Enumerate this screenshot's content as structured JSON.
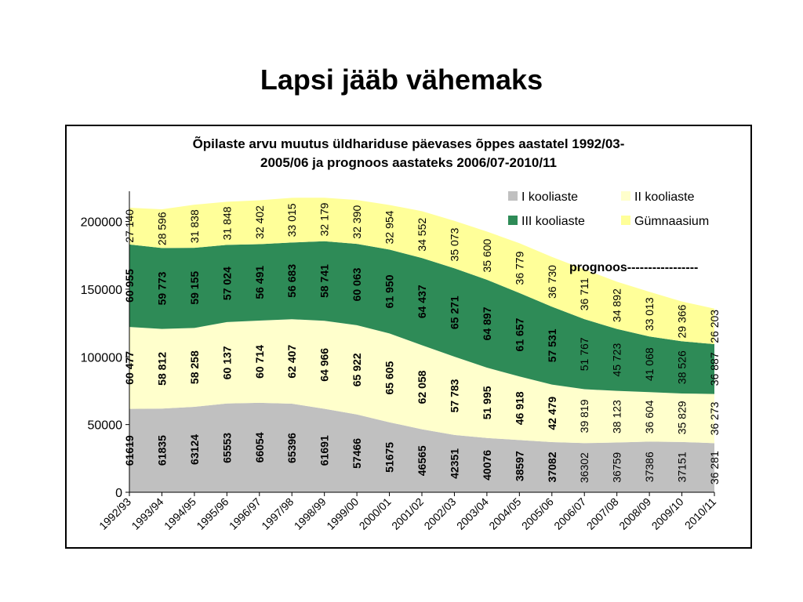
{
  "page": {
    "title": "Lapsi jääb vähemaks"
  },
  "chart_data": {
    "type": "area",
    "stacked": true,
    "title_lines": [
      "Õpilaste arvu muutus üldhariduse päevases õppes aastatel 1992/03-",
      "2005/06 ja prognoos aastateks 2006/07-2010/11"
    ],
    "categories": [
      "1992/93",
      "1993/94",
      "1994/95",
      "1995/96",
      "1996/97",
      "1997/98",
      "1998/99",
      "1999/00",
      "2000/01",
      "2001/02",
      "2002/03",
      "2003/04",
      "2004/05",
      "2005/06",
      "2006/07",
      "2007/08",
      "2008/09",
      "2009/10",
      "2010/11"
    ],
    "y_ticks": [
      "0",
      "50000",
      "100000",
      "150000",
      "200000"
    ],
    "ylim": [
      0,
      220000
    ],
    "legend_position": "top-right",
    "annotation": "prognoos-----------------",
    "series": [
      {
        "name": "I kooliaste",
        "color": "#c0c0c0",
        "values": [
          61619,
          61835,
          63124,
          65553,
          66054,
          65396,
          61691,
          57466,
          51675,
          46565,
          42351,
          40076,
          38597,
          37082,
          36302,
          36759,
          37386,
          37151,
          36281
        ],
        "labels": [
          "61619",
          "61835",
          "63124",
          "65553",
          "66054",
          "65396",
          "61691",
          "57466",
          "51675",
          "46565",
          "42351",
          "40076",
          "38597",
          "37082",
          "36302",
          "36759",
          "37386",
          "37151",
          "36 281"
        ]
      },
      {
        "name": "II kooliaste",
        "color": "#ffffcc",
        "values": [
          60477,
          58812,
          58258,
          60137,
          60714,
          62407,
          64966,
          65922,
          65605,
          62058,
          57783,
          51995,
          46918,
          42479,
          39819,
          38123,
          36604,
          35829,
          36273
        ],
        "labels": [
          "60 477",
          "58 812",
          "58 258",
          "60 137",
          "60 714",
          "62 407",
          "64 966",
          "65 922",
          "65 605",
          "62 058",
          "57 783",
          "51 995",
          "46 918",
          "42 479",
          "39 819",
          "38 123",
          "36 604",
          "35 829",
          "36 273"
        ]
      },
      {
        "name": "III kooliaste",
        "color": "#2e8b57",
        "values": [
          60955,
          59773,
          59155,
          57024,
          56491,
          56683,
          58741,
          60063,
          61950,
          64437,
          65271,
          64897,
          61657,
          57531,
          51767,
          45723,
          41068,
          38526,
          36887
        ],
        "labels": [
          "60 955",
          "59 773",
          "59 155",
          "57 024",
          "56 491",
          "56 683",
          "58 741",
          "60 063",
          "61 950",
          "64 437",
          "65 271",
          "64 897",
          "61 657",
          "57 531",
          "51 767",
          "45 723",
          "41 068",
          "38 526",
          "36 887"
        ]
      },
      {
        "name": "Gümnaasium",
        "color": "#ffff99",
        "values": [
          27140,
          28596,
          31838,
          31848,
          32402,
          33015,
          32179,
          32390,
          32954,
          34552,
          35073,
          35600,
          36779,
          36730,
          36711,
          34892,
          33013,
          29366,
          26203
        ],
        "labels": [
          "27 140",
          "28 596",
          "31 838",
          "31 848",
          "32 402",
          "33 015",
          "32 179",
          "32 390",
          "32 954",
          "34 552",
          "35 073",
          "35 600",
          "36 779",
          "36 730",
          "36 711",
          "34 892",
          "33 013",
          "29 366",
          "26 203"
        ]
      }
    ]
  }
}
